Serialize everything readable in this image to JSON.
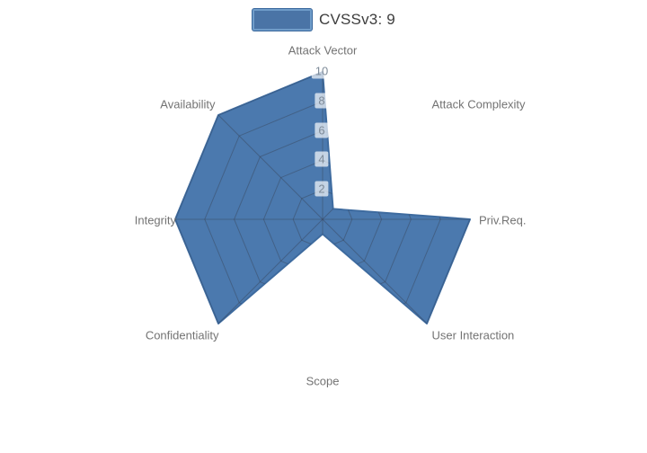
{
  "legend": {
    "label": "CVSSv3: 9",
    "swatch_fill": "#4a74a6",
    "swatch_border": "#6f9cc9"
  },
  "chart_data": {
    "type": "radar",
    "title": "",
    "categories": [
      "Attack Vector",
      "Attack Complexity",
      "Priv.Req.",
      "User Interaction",
      "Scope",
      "Confidentiality",
      "Integrity",
      "Availability"
    ],
    "series": [
      {
        "name": "CVSSv3: 9",
        "values": [
          10,
          1,
          10,
          10,
          1,
          10,
          10,
          10
        ]
      }
    ],
    "radial_ticks": [
      2,
      4,
      6,
      8,
      10
    ],
    "rmax": 10,
    "grid_shape": "polygon",
    "legend_position": "top-center",
    "colors": {
      "area_fill": "#4b79ae",
      "area_stroke": "#3e6b9f",
      "grid_line": "rgba(55,65,82,0.42)",
      "category_label": "#737373",
      "tick_label": "#7e8b99",
      "tick_label_bg": "rgba(255,255,255,0.68)",
      "legend_text": "#3d3d3d"
    }
  }
}
